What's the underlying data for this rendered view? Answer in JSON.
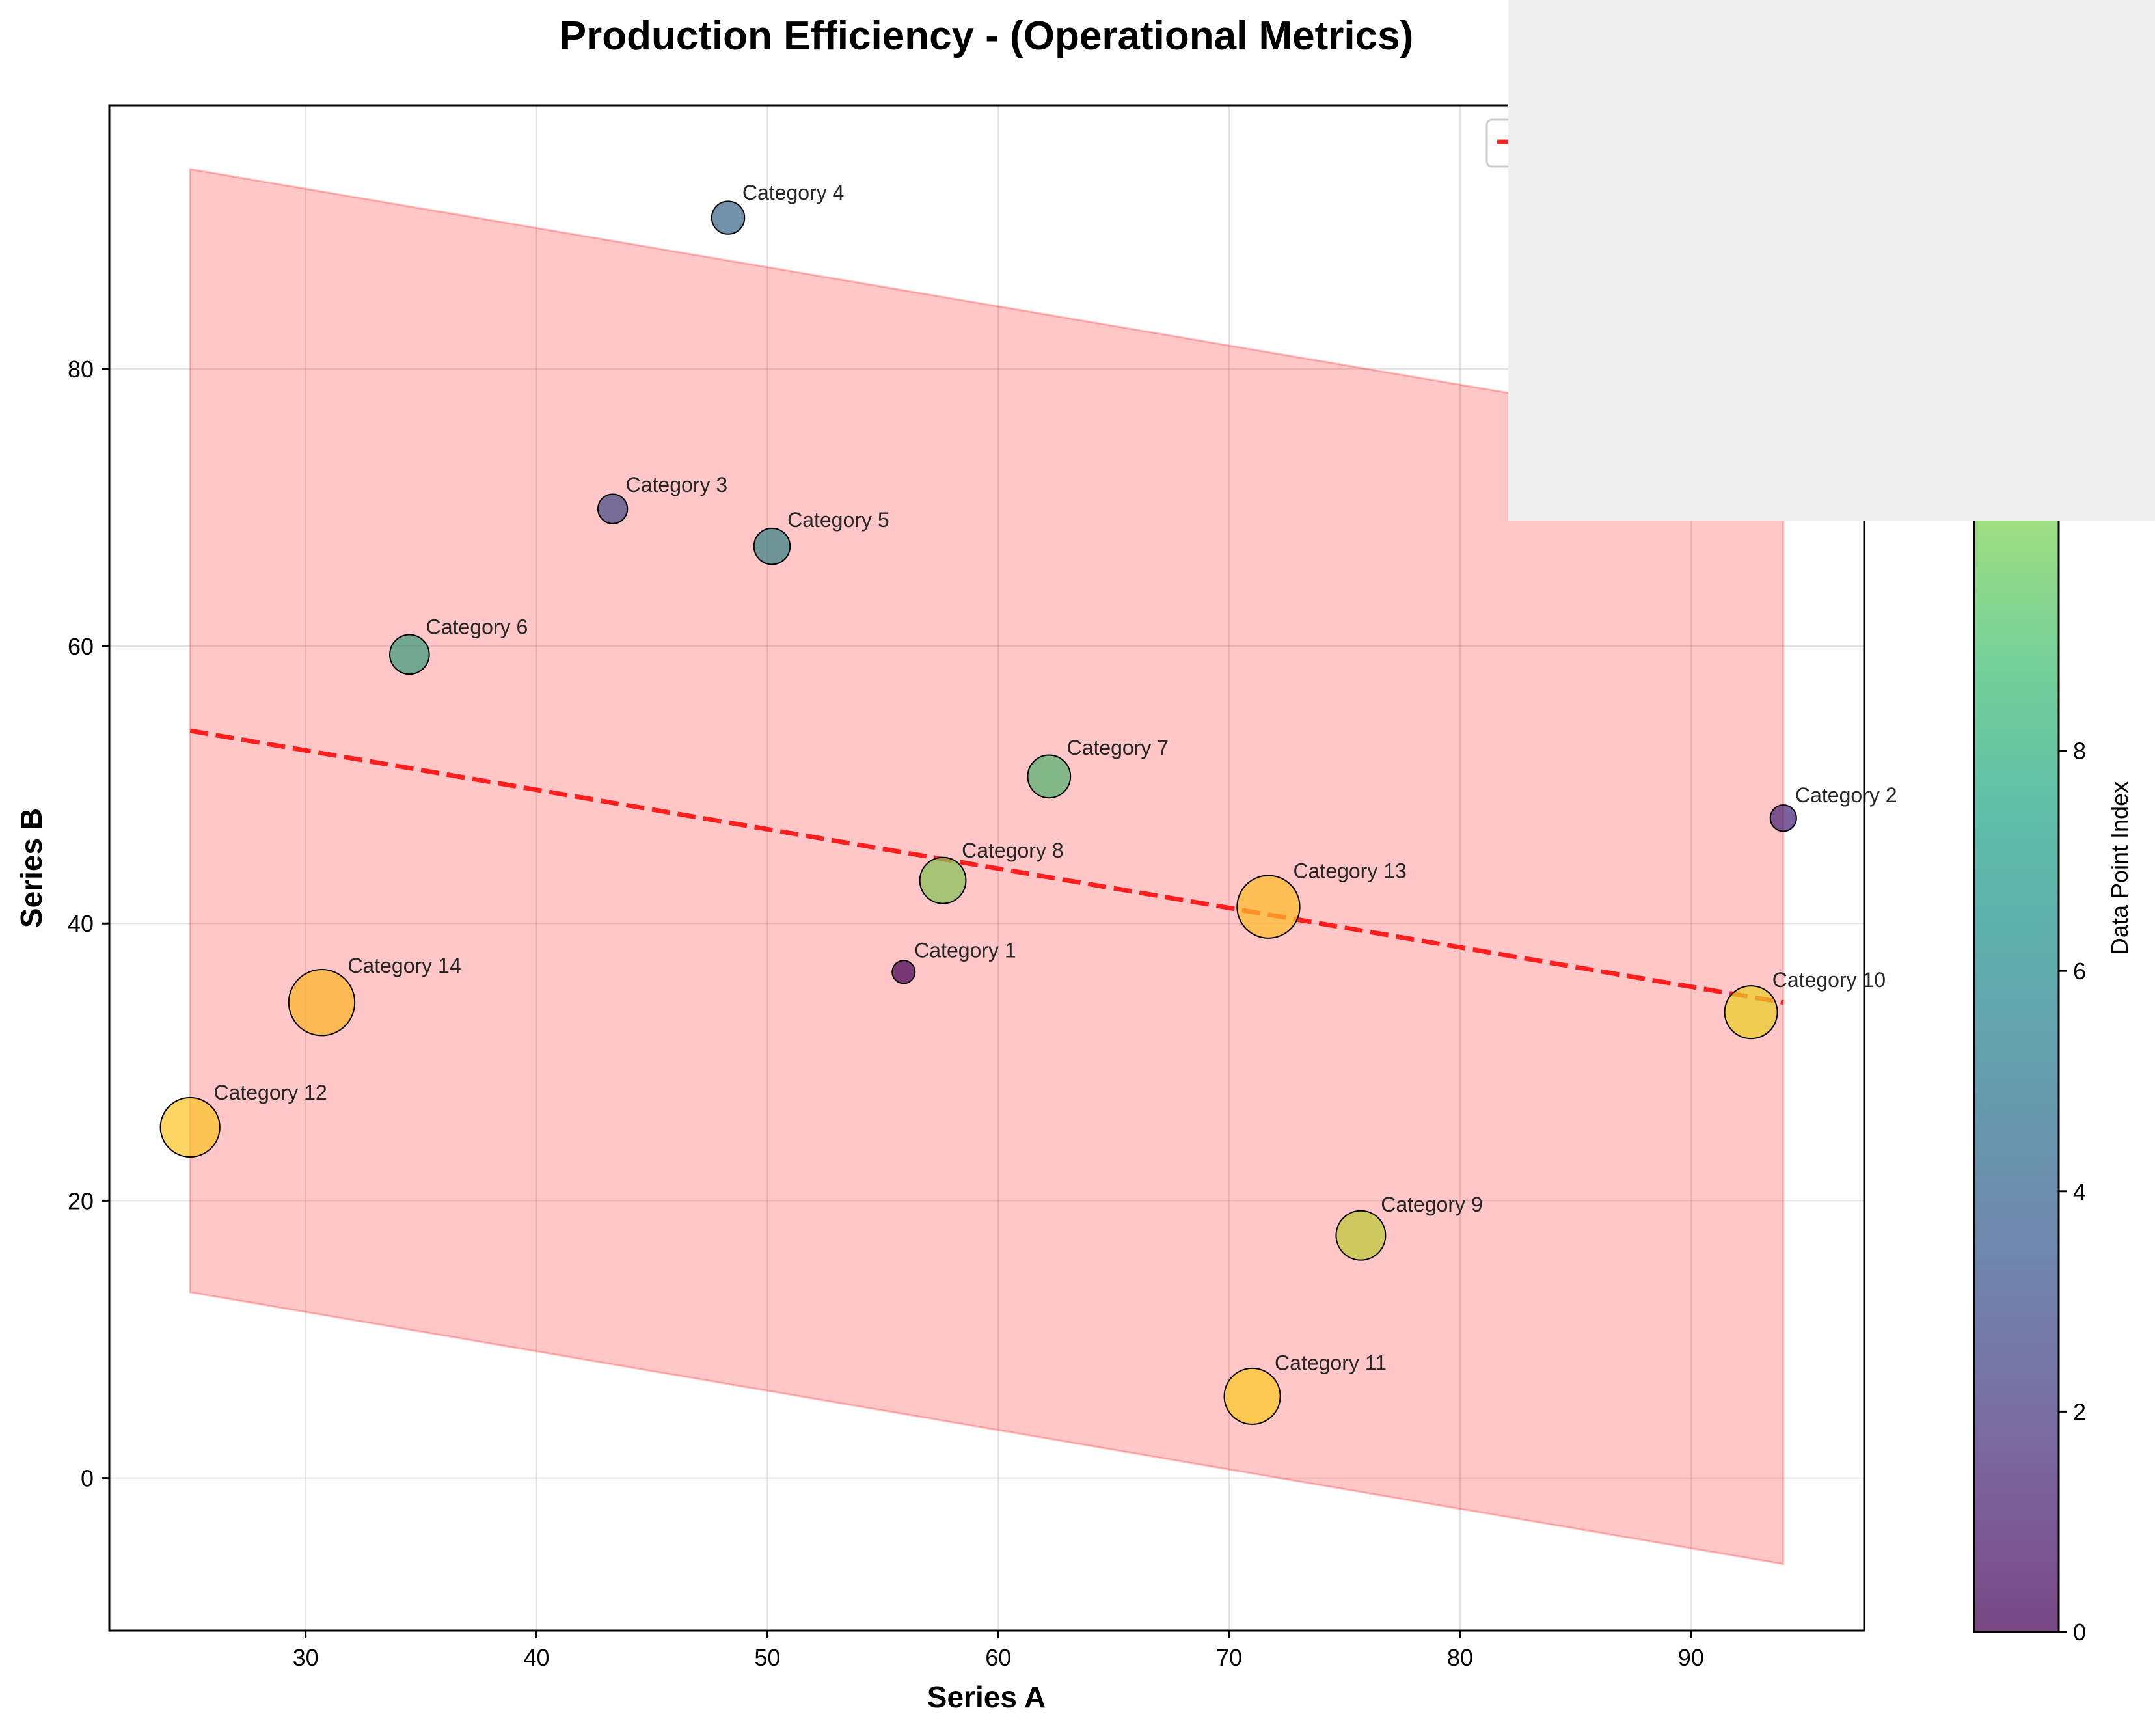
{
  "chart_data": {
    "type": "scatter",
    "title": "Production Efficiency - (Operational Metrics)",
    "xlabel": "Series A",
    "ylabel": "Series B",
    "xlim": [
      21.5,
      97.5
    ],
    "ylim": [
      -11,
      99
    ],
    "xticks": [
      30,
      40,
      50,
      60,
      70,
      80,
      90
    ],
    "yticks": [
      0,
      20,
      40,
      60,
      80
    ],
    "grid": true,
    "legend_position": "top-right",
    "colorbar": {
      "label": "Data Point Index",
      "ticks": [
        0,
        2,
        4,
        6,
        8
      ],
      "range": [
        0,
        13
      ],
      "colormap": "viridis"
    },
    "points": [
      {
        "label": "Category 1",
        "x": 55.9,
        "y": 36.5,
        "size": 1,
        "index": 0
      },
      {
        "label": "Category 2",
        "x": 94.0,
        "y": 47.6,
        "size": 2,
        "index": 1
      },
      {
        "label": "Category 3",
        "x": 43.3,
        "y": 69.9,
        "size": 3,
        "index": 2
      },
      {
        "label": "Category 4",
        "x": 48.3,
        "y": 90.9,
        "size": 4,
        "index": 3
      },
      {
        "label": "Category 5",
        "x": 50.2,
        "y": 67.2,
        "size": 5,
        "index": 4
      },
      {
        "label": "Category 6",
        "x": 34.5,
        "y": 59.4,
        "size": 6,
        "index": 5
      },
      {
        "label": "Category 7",
        "x": 62.2,
        "y": 50.6,
        "size": 7,
        "index": 6
      },
      {
        "label": "Category 8",
        "x": 57.6,
        "y": 43.1,
        "size": 8,
        "index": 7
      },
      {
        "label": "Category 9",
        "x": 75.7,
        "y": 17.5,
        "size": 9,
        "index": 8
      },
      {
        "label": "Category 10",
        "x": 92.6,
        "y": 33.6,
        "size": 10,
        "index": 9
      },
      {
        "label": "Category 11",
        "x": 71.0,
        "y": 5.9,
        "size": 11,
        "index": 10
      },
      {
        "label": "Category 12",
        "x": 25.0,
        "y": 25.3,
        "size": 12,
        "index": 11
      },
      {
        "label": "Category 13",
        "x": 71.7,
        "y": 41.2,
        "size": 13,
        "index": 12
      },
      {
        "label": "Category 14",
        "x": 30.7,
        "y": 34.3,
        "size": 14,
        "index": 13
      }
    ],
    "trend_line": {
      "x": [
        25.0,
        94.0
      ],
      "y": [
        53.9,
        34.3
      ],
      "color": "#ff2020",
      "style": "dashed"
    },
    "confidence_band": {
      "x": [
        25.0,
        94.0
      ],
      "upper": [
        94.4,
        74.9
      ],
      "lower": [
        13.4,
        -6.2
      ],
      "color": "#ffaaaa"
    },
    "colors": {
      "point_edge": "#000000",
      "band": "#ff0000",
      "trend": "#ff0000"
    }
  }
}
